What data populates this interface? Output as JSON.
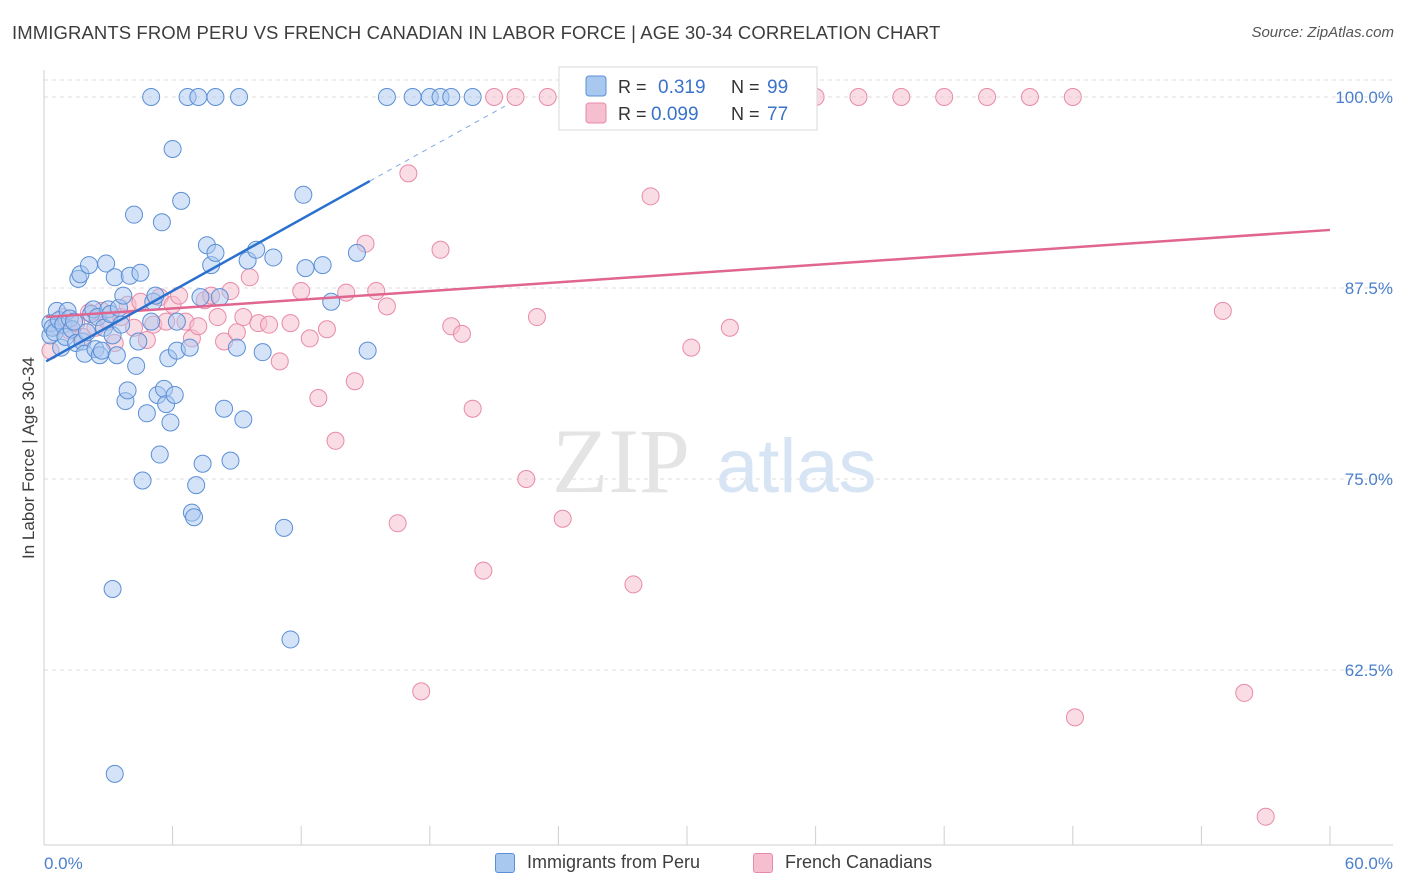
{
  "title": "IMMIGRANTS FROM PERU VS FRENCH CANADIAN IN LABOR FORCE | AGE 30-34 CORRELATION CHART",
  "source": "Source: ZipAtlas.com",
  "watermark": {
    "zip": "ZIP",
    "atlas": "atlas"
  },
  "colors": {
    "blue_fill": "#a9c8f0",
    "blue_stroke": "#5b8fd6",
    "blue_line": "#2a70cf",
    "pink_fill": "#f6bfd0",
    "pink_stroke": "#e88aa8",
    "pink_line": "#e06690",
    "axis_text": "#4a7fcc",
    "grid": "#dddddd"
  },
  "legend_top": {
    "rows": [
      {
        "r_label": "R =",
        "r_value": "0.319",
        "n_label": "N =",
        "n_value": "99"
      },
      {
        "r_label": "R =",
        "r_value": "0.099",
        "n_label": "N =",
        "n_value": "77"
      }
    ]
  },
  "chart_data": {
    "type": "scatter",
    "title": "IMMIGRANTS FROM PERU VS FRENCH CANADIAN IN LABOR FORCE | AGE 30-34 CORRELATION CHART",
    "xlabel": "",
    "ylabel": "In Labor Force | Age 30-34",
    "xlim": [
      0,
      60
    ],
    "ylim": [
      50.5,
      101.5
    ],
    "x_tick_labels": [
      "0.0%",
      "60.0%"
    ],
    "y_ticks": [
      62.5,
      75.0,
      87.5,
      100.0
    ],
    "y_tick_labels": [
      "62.5%",
      "75.0%",
      "87.5%",
      "100.0%"
    ],
    "grid": "horizontal dashed",
    "legend_position": "top-center",
    "series": [
      {
        "name": "Immigrants from Peru",
        "R": 0.319,
        "N": 99,
        "trend": {
          "x0": 0.1,
          "y0": 82.7,
          "x1": 15.2,
          "y1": 94.5,
          "dash_to_x": 21.5,
          "dash_to_y": 99.4
        },
        "points": [
          [
            0.3,
            84.4
          ],
          [
            0.3,
            85.2
          ],
          [
            0.4,
            84.9
          ],
          [
            0.5,
            84.6
          ],
          [
            0.6,
            86.0
          ],
          [
            0.7,
            85.4
          ],
          [
            0.8,
            83.6
          ],
          [
            0.9,
            85.1
          ],
          [
            1.0,
            84.3
          ],
          [
            1.1,
            86.0
          ],
          [
            1.2,
            85.5
          ],
          [
            1.3,
            84.8
          ],
          [
            1.4,
            85.3
          ],
          [
            1.5,
            83.9
          ],
          [
            1.6,
            88.1
          ],
          [
            1.7,
            88.4
          ],
          [
            1.8,
            84.0
          ],
          [
            1.9,
            83.2
          ],
          [
            2.0,
            84.6
          ],
          [
            2.1,
            89.0
          ],
          [
            2.2,
            85.8
          ],
          [
            2.3,
            86.1
          ],
          [
            2.4,
            83.5
          ],
          [
            2.5,
            85.6
          ],
          [
            2.6,
            83.1
          ],
          [
            2.7,
            83.4
          ],
          [
            2.8,
            84.9
          ],
          [
            2.9,
            89.1
          ],
          [
            3.0,
            86.1
          ],
          [
            3.1,
            85.8
          ],
          [
            3.2,
            84.4
          ],
          [
            3.3,
            88.2
          ],
          [
            3.4,
            83.1
          ],
          [
            3.5,
            86.2
          ],
          [
            3.6,
            85.1
          ],
          [
            3.7,
            87.0
          ],
          [
            3.8,
            80.1
          ],
          [
            3.9,
            80.8
          ],
          [
            4.0,
            88.3
          ],
          [
            4.2,
            92.3
          ],
          [
            4.3,
            82.4
          ],
          [
            4.4,
            84.0
          ],
          [
            4.5,
            88.5
          ],
          [
            4.6,
            74.9
          ],
          [
            4.8,
            79.3
          ],
          [
            5.0,
            85.3
          ],
          [
            5.1,
            86.6
          ],
          [
            5.2,
            87.0
          ],
          [
            5.3,
            80.5
          ],
          [
            5.4,
            76.6
          ],
          [
            5.5,
            91.8
          ],
          [
            5.6,
            80.9
          ],
          [
            5.7,
            79.9
          ],
          [
            5.8,
            82.9
          ],
          [
            5.9,
            78.7
          ],
          [
            6.0,
            96.6
          ],
          [
            6.1,
            80.5
          ],
          [
            6.2,
            83.4
          ],
          [
            6.4,
            93.2
          ],
          [
            6.8,
            83.6
          ],
          [
            6.9,
            72.8
          ],
          [
            7.0,
            72.5
          ],
          [
            7.3,
            86.9
          ],
          [
            7.4,
            76.0
          ],
          [
            7.6,
            90.3
          ],
          [
            7.8,
            89.0
          ],
          [
            8.0,
            89.8
          ],
          [
            8.2,
            86.9
          ],
          [
            8.4,
            79.6
          ],
          [
            8.7,
            76.2
          ],
          [
            9.0,
            83.6
          ],
          [
            9.3,
            78.9
          ],
          [
            9.5,
            89.3
          ],
          [
            9.9,
            90.0
          ],
          [
            10.2,
            83.3
          ],
          [
            10.7,
            89.5
          ],
          [
            11.2,
            71.8
          ],
          [
            11.5,
            64.5
          ],
          [
            12.1,
            93.6
          ],
          [
            12.2,
            88.8
          ],
          [
            13.0,
            89.0
          ],
          [
            13.4,
            86.6
          ],
          [
            14.6,
            89.8
          ],
          [
            15.1,
            83.4
          ],
          [
            16.0,
            100.0
          ],
          [
            17.2,
            100.0
          ],
          [
            18.0,
            100.0
          ],
          [
            18.5,
            100.0
          ],
          [
            19.0,
            100.0
          ],
          [
            20.0,
            100.0
          ],
          [
            5.0,
            100.0
          ],
          [
            6.7,
            100.0
          ],
          [
            7.2,
            100.0
          ],
          [
            8.0,
            100.0
          ],
          [
            9.1,
            100.0
          ],
          [
            3.3,
            55.7
          ],
          [
            3.2,
            67.8
          ],
          [
            6.2,
            85.3
          ],
          [
            7.1,
            74.6
          ]
        ]
      },
      {
        "name": "French Canadians",
        "R": 0.099,
        "N": 77,
        "trend": {
          "x0": 0.1,
          "y0": 85.6,
          "x1": 60,
          "y1": 91.3
        },
        "points": [
          [
            0.3,
            83.4
          ],
          [
            0.6,
            85.0
          ],
          [
            0.9,
            85.6
          ],
          [
            1.2,
            84.7
          ],
          [
            1.5,
            85.2
          ],
          [
            1.8,
            84.3
          ],
          [
            2.1,
            85.9
          ],
          [
            2.4,
            84.9
          ],
          [
            2.7,
            86.0
          ],
          [
            3.0,
            85.3
          ],
          [
            3.3,
            83.9
          ],
          [
            3.6,
            85.6
          ],
          [
            3.9,
            86.4
          ],
          [
            4.2,
            84.9
          ],
          [
            4.5,
            86.6
          ],
          [
            4.8,
            84.1
          ],
          [
            5.1,
            85.1
          ],
          [
            5.4,
            86.9
          ],
          [
            5.7,
            85.3
          ],
          [
            6.0,
            86.4
          ],
          [
            6.3,
            87.0
          ],
          [
            6.6,
            85.3
          ],
          [
            6.9,
            84.2
          ],
          [
            7.2,
            85.0
          ],
          [
            7.5,
            86.7
          ],
          [
            7.8,
            87.0
          ],
          [
            8.1,
            85.6
          ],
          [
            8.4,
            84.0
          ],
          [
            8.7,
            87.3
          ],
          [
            9.0,
            84.6
          ],
          [
            9.3,
            85.6
          ],
          [
            9.6,
            88.2
          ],
          [
            10.0,
            85.2
          ],
          [
            10.5,
            85.1
          ],
          [
            11.0,
            82.7
          ],
          [
            11.5,
            85.2
          ],
          [
            12.0,
            87.3
          ],
          [
            12.4,
            84.2
          ],
          [
            12.8,
            80.3
          ],
          [
            13.2,
            84.8
          ],
          [
            13.6,
            77.5
          ],
          [
            14.1,
            87.2
          ],
          [
            14.5,
            81.4
          ],
          [
            15.0,
            90.4
          ],
          [
            15.5,
            87.3
          ],
          [
            16.0,
            86.3
          ],
          [
            16.5,
            72.1
          ],
          [
            17.0,
            95.0
          ],
          [
            17.6,
            61.1
          ],
          [
            18.5,
            90.0
          ],
          [
            19.0,
            85.0
          ],
          [
            19.5,
            84.5
          ],
          [
            20.0,
            79.6
          ],
          [
            20.5,
            69.0
          ],
          [
            21.0,
            100.0
          ],
          [
            22.0,
            100.0
          ],
          [
            22.5,
            75.0
          ],
          [
            23.0,
            85.6
          ],
          [
            23.5,
            100.0
          ],
          [
            24.2,
            72.4
          ],
          [
            24.8,
            100.0
          ],
          [
            27.5,
            68.1
          ],
          [
            28.3,
            93.5
          ],
          [
            30.2,
            83.6
          ],
          [
            32.0,
            84.9
          ],
          [
            34.0,
            100.0
          ],
          [
            36.0,
            100.0
          ],
          [
            38.0,
            100.0
          ],
          [
            40.0,
            100.0
          ],
          [
            42.0,
            100.0
          ],
          [
            44.0,
            100.0
          ],
          [
            46.0,
            100.0
          ],
          [
            48.0,
            100.0
          ],
          [
            48.1,
            59.4
          ],
          [
            55.0,
            86.0
          ],
          [
            56.0,
            61.0
          ],
          [
            57.0,
            52.9
          ]
        ]
      }
    ]
  }
}
